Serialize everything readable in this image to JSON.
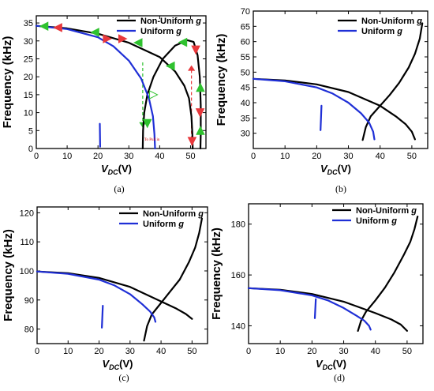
{
  "chart_data": [
    {
      "type": "line",
      "panel_label": "(a)",
      "ylabel": "Frequency (kHz)",
      "xlabel": {
        "main": "V",
        "sub": "DC",
        "unit": "(V)"
      },
      "xlim": [
        0,
        55
      ],
      "ylim": [
        0,
        37
      ],
      "xticks": [
        0,
        10,
        20,
        30,
        40,
        50
      ],
      "yticks": [
        0,
        5,
        10,
        15,
        20,
        25,
        30,
        35
      ],
      "legend_position": "top-right",
      "series": [
        {
          "name": "Non-Uniform g",
          "color": "#000000",
          "segments": [
            [
              [
                0,
                34.2
              ],
              [
                10,
                33.5
              ],
              [
                20,
                32.0
              ],
              [
                30,
                29.5
              ],
              [
                40,
                25.5
              ],
              [
                45,
                21.5
              ],
              [
                48,
                17.5
              ],
              [
                49.5,
                14
              ],
              [
                50.3,
                9
              ],
              [
                50.6,
                4
              ],
              [
                50.7,
                0
              ]
            ],
            [
              [
                34.5,
                0
              ],
              [
                34.6,
                5
              ],
              [
                35,
                10
              ],
              [
                36,
                15
              ],
              [
                38,
                20
              ],
              [
                41,
                25
              ],
              [
                45,
                28.7
              ],
              [
                49,
                30.2
              ],
              [
                51,
                29.7
              ],
              [
                52.3,
                26
              ],
              [
                53,
                20
              ],
              [
                53.3,
                12
              ],
              [
                53.3,
                4
              ],
              [
                53.2,
                0
              ]
            ]
          ]
        },
        {
          "name": "Uniform g",
          "color": "#1f2fd6",
          "segments": [
            [
              [
                0,
                34.2
              ],
              [
                10,
                33.3
              ],
              [
                20,
                31.0
              ],
              [
                25,
                28.5
              ],
              [
                30,
                24.5
              ],
              [
                34,
                19.5
              ],
              [
                36.5,
                14
              ],
              [
                37.8,
                9
              ],
              [
                38.3,
                4
              ],
              [
                38.5,
                0
              ]
            ],
            [
              [
                20.6,
                6.9
              ],
              [
                20.7,
                0.5
              ]
            ]
          ]
        }
      ],
      "arrows": [
        {
          "x": 2.5,
          "y": 34.1,
          "dir": "left",
          "color": "#2fc22f"
        },
        {
          "x": 7,
          "y": 33.7,
          "dir": "left",
          "color": "#e8383c"
        },
        {
          "x": 19,
          "y": 32.4,
          "dir": "left",
          "color": "#2fc22f"
        },
        {
          "x": 23,
          "y": 30.6,
          "dir": "right",
          "color": "#e8383c"
        },
        {
          "x": 33,
          "y": 29.5,
          "dir": "left",
          "color": "#2fc22f"
        },
        {
          "x": 28,
          "y": 30.6,
          "dir": "right",
          "color": "#e8383c"
        },
        {
          "x": 47.5,
          "y": 29.6,
          "dir": "left",
          "color": "#2fc22f"
        },
        {
          "x": 51.7,
          "y": 27.5,
          "dir": "down",
          "color": "#e8383c"
        },
        {
          "x": 53.2,
          "y": 17,
          "dir": "up",
          "color": "#2fc22f"
        },
        {
          "x": 53.1,
          "y": 10,
          "dir": "down",
          "color": "#e8383c"
        },
        {
          "x": 53.2,
          "y": 5,
          "dir": "up",
          "color": "#2fc22f"
        },
        {
          "x": 43.5,
          "y": 23,
          "dir": "left",
          "color": "#2fc22f"
        },
        {
          "x": 38,
          "y": 15,
          "dir": "right",
          "color": "#2fc22f"
        },
        {
          "x": 36,
          "y": 7,
          "dir": "down",
          "color": "#2fc22f"
        },
        {
          "x": 50.5,
          "y": 2,
          "dir": "down",
          "color": "#e8383c"
        }
      ],
      "dashed_lines": [
        {
          "x": 34.5,
          "y_from": 24,
          "y_to": 6,
          "color": "#2fc22f",
          "arrow": "down"
        },
        {
          "x": 50.3,
          "y_from": 1,
          "y_to": 23,
          "color": "#e8383c",
          "arrow": "up"
        }
      ],
      "annotation": "To Pull in"
    },
    {
      "type": "line",
      "panel_label": "(b)",
      "ylabel": "Frequency (kHz)",
      "xlabel": {
        "main": "V",
        "sub": "DC",
        "unit": "(V)"
      },
      "xlim": [
        0,
        55
      ],
      "ylim": [
        25,
        70
      ],
      "xticks": [
        0,
        10,
        20,
        30,
        40,
        50
      ],
      "yticks": [
        30,
        35,
        40,
        45,
        50,
        55,
        60,
        65,
        70
      ],
      "legend_position": "top-right",
      "series": [
        {
          "name": "Non-Uniform g",
          "color": "#000000",
          "segments": [
            [
              [
                0,
                47.8
              ],
              [
                10,
                47.3
              ],
              [
                20,
                46.0
              ],
              [
                30,
                43.5
              ],
              [
                40,
                39.0
              ],
              [
                45,
                35.5
              ],
              [
                48,
                33.0
              ],
              [
                50,
                30.5
              ],
              [
                51,
                28
              ]
            ],
            [
              [
                34.5,
                27.8
              ],
              [
                35.5,
                32
              ],
              [
                37,
                35.5
              ],
              [
                40,
                39
              ],
              [
                43,
                42.5
              ],
              [
                46,
                46.5
              ],
              [
                49,
                51.5
              ],
              [
                51,
                56
              ],
              [
                52.5,
                61
              ],
              [
                53.3,
                66
              ]
            ]
          ]
        },
        {
          "name": "Uniform g",
          "color": "#1f2fd6",
          "segments": [
            [
              [
                0,
                47.8
              ],
              [
                10,
                47.0
              ],
              [
                20,
                45.0
              ],
              [
                25,
                43.0
              ],
              [
                30,
                40.0
              ],
              [
                34,
                36.5
              ],
              [
                36.5,
                33.5
              ],
              [
                37.8,
                30.5
              ],
              [
                38.2,
                28
              ]
            ],
            [
              [
                21.5,
                39
              ],
              [
                21.2,
                31
              ]
            ]
          ]
        }
      ]
    },
    {
      "type": "line",
      "panel_label": "(c)",
      "ylabel": "Frequency (kHz)",
      "xlabel": {
        "main": "V",
        "sub": "DC",
        "unit": "(V)"
      },
      "xlim": [
        0,
        55
      ],
      "ylim": [
        75,
        122
      ],
      "xticks": [
        0,
        10,
        20,
        30,
        40,
        50
      ],
      "yticks": [
        80,
        90,
        100,
        110,
        120
      ],
      "legend_position": "top-right",
      "series": [
        {
          "name": "Non-Uniform g",
          "color": "#000000",
          "segments": [
            [
              [
                0,
                99.8
              ],
              [
                10,
                99.2
              ],
              [
                20,
                97.6
              ],
              [
                30,
                94.5
              ],
              [
                40,
                89.5
              ],
              [
                45,
                87.0
              ],
              [
                48,
                85.2
              ],
              [
                50,
                83.5
              ]
            ],
            [
              [
                34.5,
                76
              ],
              [
                35.5,
                81
              ],
              [
                37,
                85
              ],
              [
                40,
                89
              ],
              [
                43,
                93
              ],
              [
                46,
                97
              ],
              [
                49,
                103
              ],
              [
                51,
                108
              ],
              [
                52.3,
                113
              ],
              [
                53.2,
                118
              ]
            ]
          ]
        },
        {
          "name": "Uniform g",
          "color": "#1f2fd6",
          "segments": [
            [
              [
                0,
                99.8
              ],
              [
                10,
                99.0
              ],
              [
                20,
                97.0
              ],
              [
                25,
                95.0
              ],
              [
                30,
                92.0
              ],
              [
                34,
                88.5
              ],
              [
                36.5,
                86.0
              ],
              [
                37.8,
                84.0
              ],
              [
                38.2,
                82.5
              ]
            ],
            [
              [
                21.2,
                88
              ],
              [
                20.9,
                80.5
              ]
            ]
          ]
        }
      ]
    },
    {
      "type": "line",
      "panel_label": "(d)",
      "ylabel": "Frequency (kHz)",
      "xlabel": {
        "main": "V",
        "sub": "DC",
        "unit": "(V)"
      },
      "xlim": [
        0,
        55
      ],
      "ylim": [
        133,
        188
      ],
      "xticks": [
        0,
        10,
        20,
        30,
        40,
        50
      ],
      "yticks": [
        140,
        160,
        180
      ],
      "legend_position": "top-right",
      "series": [
        {
          "name": "Non-Uniform g",
          "color": "#000000",
          "segments": [
            [
              [
                0,
                154.8
              ],
              [
                10,
                154.2
              ],
              [
                20,
                152.5
              ],
              [
                30,
                149.5
              ],
              [
                40,
                145.0
              ],
              [
                45,
                142.5
              ],
              [
                48,
                140.5
              ],
              [
                50,
                138.0
              ]
            ],
            [
              [
                34.5,
                138.0
              ],
              [
                35.5,
                142
              ],
              [
                37,
                145.5
              ],
              [
                40,
                150
              ],
              [
                43,
                155
              ],
              [
                46,
                161
              ],
              [
                49,
                168
              ],
              [
                51,
                173
              ],
              [
                52.3,
                178
              ],
              [
                53.3,
                183
              ]
            ]
          ]
        },
        {
          "name": "Uniform g",
          "color": "#1f2fd6",
          "segments": [
            [
              [
                0,
                154.8
              ],
              [
                10,
                154.0
              ],
              [
                20,
                152.0
              ],
              [
                25,
                150.0
              ],
              [
                30,
                147.0
              ],
              [
                34,
                144.0
              ],
              [
                36.5,
                142.0
              ],
              [
                38,
                140.0
              ],
              [
                38.5,
                138.5
              ]
            ],
            [
              [
                21.2,
                150.5
              ],
              [
                20.9,
                143
              ]
            ]
          ]
        }
      ]
    }
  ]
}
